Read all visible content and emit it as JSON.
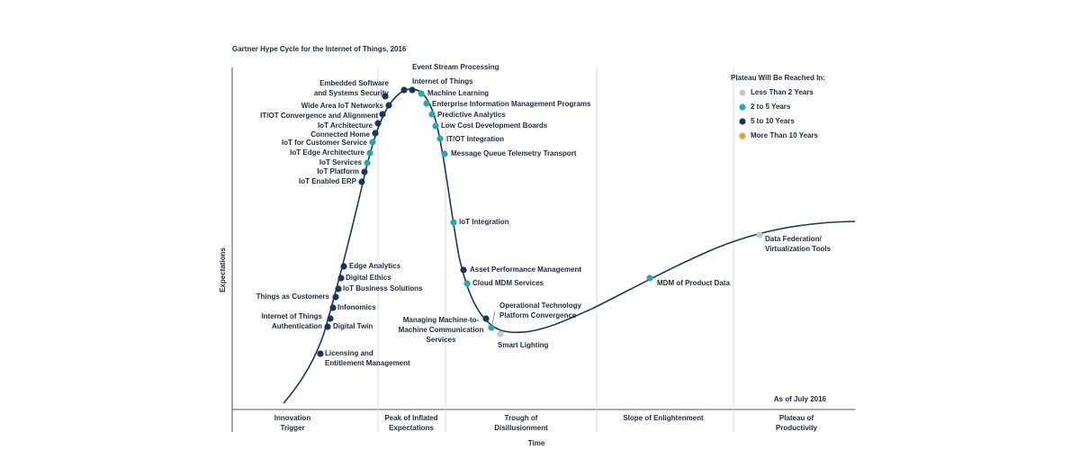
{
  "title": "Gartner Hype Cycle for the Internet of Things, 2016",
  "y_axis_label": "Expectations",
  "x_axis_label": "Time",
  "note": "As of July 2016",
  "phases": [
    {
      "lines": [
        "Innovation",
        "Trigger"
      ]
    },
    {
      "lines": [
        "Peak of Inflated",
        "Expectations"
      ]
    },
    {
      "lines": [
        "Trough of",
        "Disillusionment"
      ]
    },
    {
      "lines": [
        "Slope of Enlightenment"
      ]
    },
    {
      "lines": [
        "Plateau of",
        "Productivity"
      ]
    }
  ],
  "legend": {
    "title": "Plateau Will Be Reached In:",
    "items": [
      {
        "label": "Less Than 2 Years",
        "color": "#c6c7cc"
      },
      {
        "label": "2 to 5 Years",
        "color": "#2aa6b3"
      },
      {
        "label": "5 to 10 Years",
        "color": "#1b3658"
      },
      {
        "label": "More Than 10 Years",
        "color": "#dfa03e"
      }
    ]
  },
  "technologies": [
    {
      "lines": [
        "Embedded Software",
        "and Systems Security"
      ],
      "color": "#1b3658"
    },
    {
      "lines": [
        "Wide Area IoT Networks"
      ],
      "color": "#1b3658"
    },
    {
      "lines": [
        "IT/OT Convergence and Alignment"
      ],
      "color": "#1b3658"
    },
    {
      "lines": [
        "IoT Architecture"
      ],
      "color": "#1b3658"
    },
    {
      "lines": [
        "Connected Home"
      ],
      "color": "#1b3658"
    },
    {
      "lines": [
        "IoT for Customer Service"
      ],
      "color": "#2aa6b3"
    },
    {
      "lines": [
        "IoT Edge Architecture"
      ],
      "color": "#2aa6b3"
    },
    {
      "lines": [
        "IoT Services"
      ],
      "color": "#2aa6b3"
    },
    {
      "lines": [
        "IoT Platform"
      ],
      "color": "#1b3658"
    },
    {
      "lines": [
        "IoT Enabled ERP"
      ],
      "color": "#1b3658"
    },
    {
      "lines": [
        "Edge Analytics"
      ],
      "color": "#1b3658"
    },
    {
      "lines": [
        "Digital Ethics"
      ],
      "color": "#1b3658"
    },
    {
      "lines": [
        "IoT Business Solutions"
      ],
      "color": "#1b3658"
    },
    {
      "lines": [
        "Things as Customers"
      ],
      "color": "#1b3658"
    },
    {
      "lines": [
        "Infonomics"
      ],
      "color": "#1b3658"
    },
    {
      "lines": [
        "Internet of Things",
        "Authentication"
      ],
      "color": "#1b3658"
    },
    {
      "lines": [
        "Digital Twin"
      ],
      "color": "#1b3658"
    },
    {
      "lines": [
        "Licensing and",
        "Entitlement Management"
      ],
      "color": "#1b3658"
    },
    {
      "lines": [
        "Event Stream Processing"
      ],
      "color": "#1b3658"
    },
    {
      "lines": [
        "Internet of Things"
      ],
      "color": "#1b3658"
    },
    {
      "lines": [
        "Machine Learning"
      ],
      "color": "#2aa6b3"
    },
    {
      "lines": [
        "Enterprise Information Management Programs"
      ],
      "color": "#2aa6b3"
    },
    {
      "lines": [
        "Predictive Analytics"
      ],
      "color": "#2aa6b3"
    },
    {
      "lines": [
        "Low Cost Development Boards"
      ],
      "color": "#2aa6b3"
    },
    {
      "lines": [
        "IT/OT Integration"
      ],
      "color": "#2aa6b3"
    },
    {
      "lines": [
        "Message Queue Telemetry Transport"
      ],
      "color": "#2aa6b3"
    },
    {
      "lines": [
        "IoT Integration"
      ],
      "color": "#2aa6b3"
    },
    {
      "lines": [
        "Asset Performance Management"
      ],
      "color": "#1b3658"
    },
    {
      "lines": [
        "Cloud MDM Services"
      ],
      "color": "#2aa6b3"
    },
    {
      "lines": [
        "Managing Machine-to-",
        "Machine Communication",
        "Services"
      ],
      "color": "#1b3658"
    },
    {
      "lines": [
        "Operational Technology",
        "Platform Convergence"
      ],
      "color": "#2aa6b3"
    },
    {
      "lines": [
        "Smart Lighting"
      ],
      "color": "#c6c7cc"
    },
    {
      "lines": [
        "MDM of Product Data"
      ],
      "color": "#2aa6b3"
    },
    {
      "lines": [
        "Data Federation/",
        "Virtualization Tools"
      ],
      "color": "#c6c7cc"
    }
  ]
}
